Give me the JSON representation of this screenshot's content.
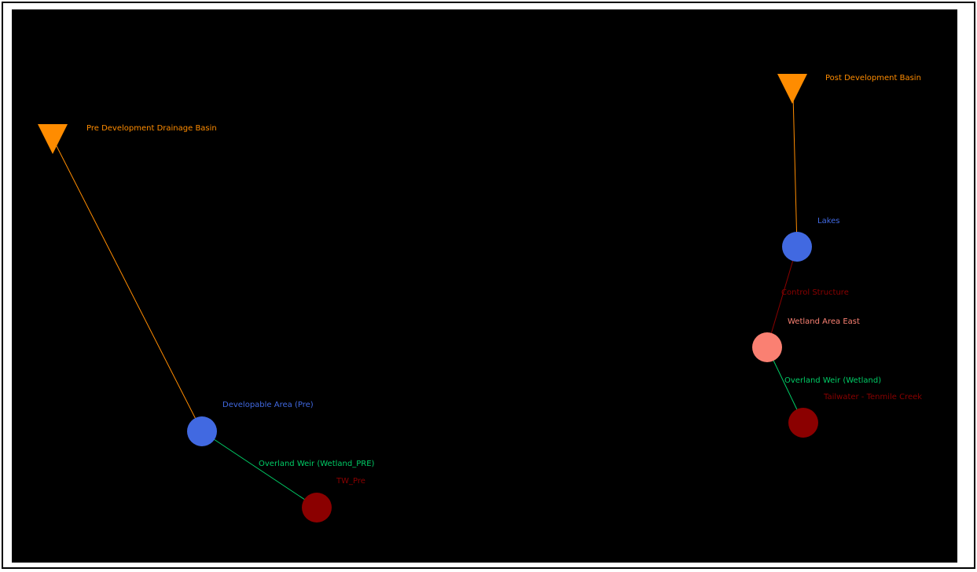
{
  "colors": {
    "background": "#000000",
    "frame": "#ffffff",
    "basin": "#ff8c00",
    "pond": "#4169e1",
    "wetland": "#fa8072",
    "tailwater": "#8b0000",
    "link_runoff": "#ff8c00",
    "link_weir": "#00cc66",
    "link_structure": "#8b0000"
  },
  "nodes": [
    {
      "id": "pre-basin",
      "type": "basin",
      "icon": "orange-triangle-icon",
      "label": "Pre Development Drainage Basin"
    },
    {
      "id": "post-basin",
      "type": "basin",
      "icon": "orange-triangle-icon",
      "label": "Post Development Basin"
    },
    {
      "id": "developable-area",
      "type": "pond",
      "icon": "blue-circle-icon",
      "label": "Developable Area (Pre)"
    },
    {
      "id": "tw-pre",
      "type": "tailwater",
      "icon": "dark-red-circle-icon",
      "label": "TW_Pre"
    },
    {
      "id": "lakes",
      "type": "pond",
      "icon": "blue-circle-icon",
      "label": "Lakes"
    },
    {
      "id": "wetland-east",
      "type": "wetland",
      "icon": "salmon-circle-icon",
      "label": "Wetland Area East"
    },
    {
      "id": "tailwater-tenmile",
      "type": "tailwater",
      "icon": "dark-red-circle-icon",
      "label": "Tailwater - Tenmile Creek"
    }
  ],
  "links": [
    {
      "id": "runoff-pre",
      "from": "pre-basin",
      "to": "developable-area",
      "type": "runoff",
      "label": ""
    },
    {
      "id": "weir-pre",
      "from": "developable-area",
      "to": "tw-pre",
      "type": "weir",
      "label": "Overland Weir (Wetland_PRE)"
    },
    {
      "id": "runoff-post",
      "from": "post-basin",
      "to": "lakes",
      "type": "runoff",
      "label": ""
    },
    {
      "id": "control-structure",
      "from": "lakes",
      "to": "wetland-east",
      "type": "structure",
      "label": "Control Structure"
    },
    {
      "id": "weir-wetland",
      "from": "wetland-east",
      "to": "tailwater-tenmile",
      "type": "weir",
      "label": "Overland Weir (Wetland)"
    }
  ]
}
